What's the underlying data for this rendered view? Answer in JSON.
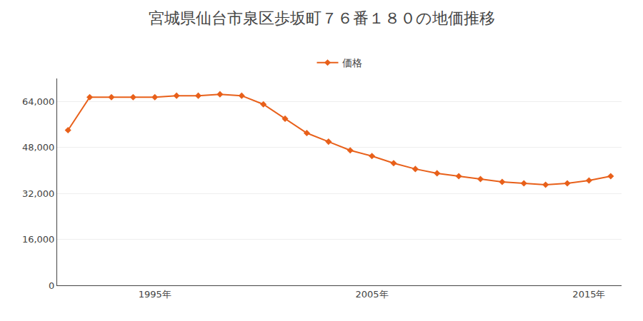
{
  "chart_data": {
    "type": "line",
    "title": "宮城県仙台市泉区歩坂町７６番１８０の地価推移",
    "x": [
      1991,
      1992,
      1993,
      1994,
      1995,
      1996,
      1997,
      1998,
      1999,
      2000,
      2001,
      2002,
      2003,
      2004,
      2005,
      2006,
      2007,
      2008,
      2009,
      2010,
      2011,
      2012,
      2013,
      2014,
      2015,
      2016
    ],
    "series": [
      {
        "name": "価格",
        "color": "#E8601A",
        "marker": "diamond",
        "values": [
          54000,
          65500,
          65500,
          65500,
          65500,
          66000,
          66000,
          66500,
          66000,
          63000,
          58000,
          53000,
          50000,
          47000,
          45000,
          42500,
          40500,
          39000,
          38000,
          37000,
          36000,
          35500,
          35000,
          35500,
          36500,
          38000
        ]
      }
    ],
    "xlim": [
      1990.5,
      2016.5
    ],
    "xticks": [
      {
        "value": 1995,
        "label": "1995年"
      },
      {
        "value": 2005,
        "label": "2005年"
      },
      {
        "value": 2015,
        "label": "2015年"
      }
    ],
    "ylim": [
      0,
      72000
    ],
    "yticks": [
      0,
      {
        "value": 16000,
        "label": "16,000"
      },
      {
        "value": 32000,
        "label": "32,000"
      },
      {
        "value": 48000,
        "label": "48,000"
      },
      {
        "value": 64000,
        "label": "64,000"
      }
    ],
    "grid": "y",
    "legend": "top"
  }
}
